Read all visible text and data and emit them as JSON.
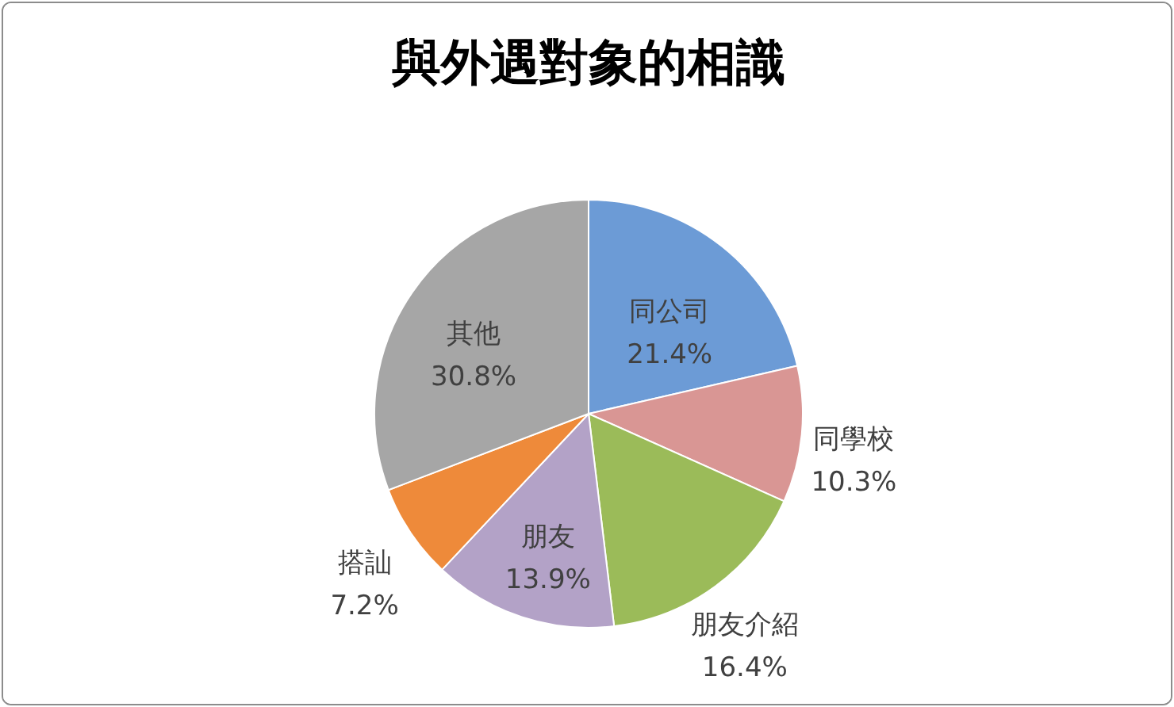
{
  "chart_data": {
    "type": "pie",
    "title": "與外遇對象的相識",
    "categories": [
      "同公司",
      "同學校",
      "朋友介紹",
      "朋友",
      "搭訕",
      "其他"
    ],
    "values": [
      21.4,
      10.3,
      16.4,
      13.9,
      7.2,
      30.8
    ],
    "value_labels": [
      "21.4%",
      "10.3%",
      "16.4%",
      "13.9%",
      "7.2%",
      "30.8%"
    ],
    "colors": [
      "#6c9bd6",
      "#d99694",
      "#9bbb59",
      "#b3a2c7",
      "#ee8a3a",
      "#a6a6a6"
    ]
  }
}
